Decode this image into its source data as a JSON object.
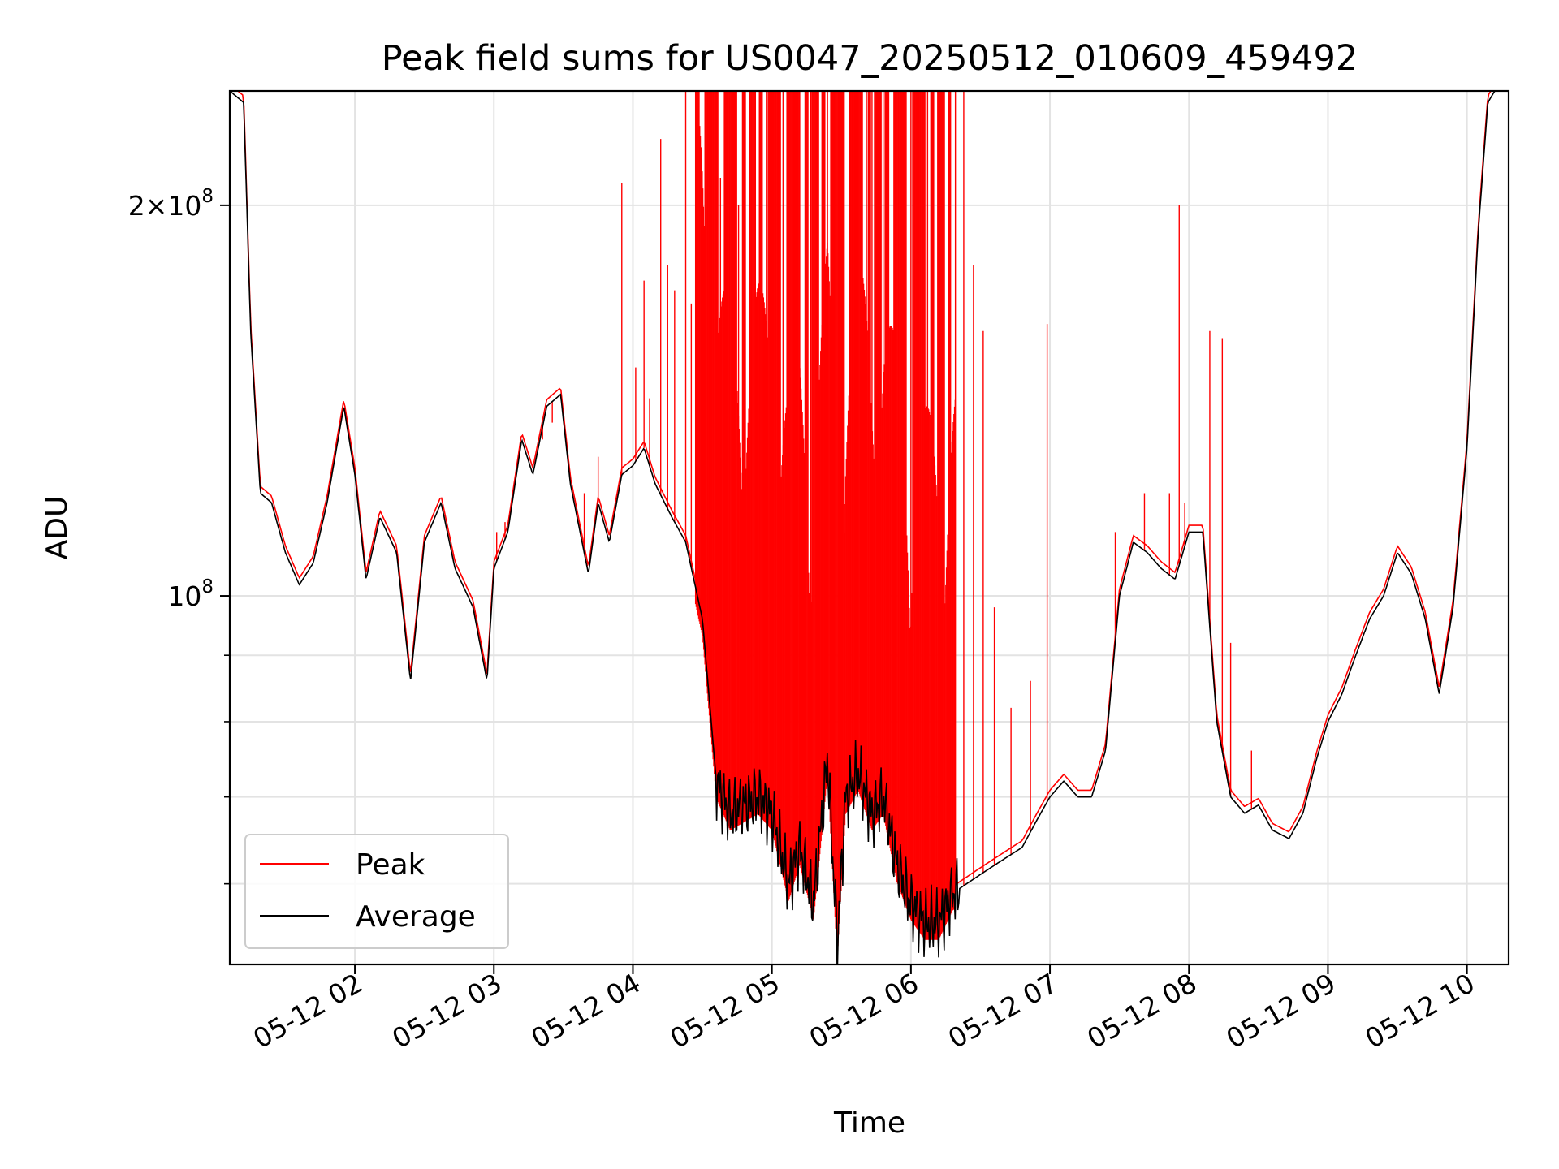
{
  "chart_data": {
    "type": "line",
    "title": "Peak field sums for US0047_20250512_010609_459492",
    "xlabel": "Time",
    "ylabel": "ADU",
    "yscale": "log",
    "grid": true,
    "legend_position": "lower-left",
    "xlim": [
      "05-12 01:06",
      "05-12 10:18"
    ],
    "ylim": [
      52000000,
      245000000
    ],
    "x_ticks": [
      "05-12 02",
      "05-12 03",
      "05-12 04",
      "05-12 05",
      "05-12 06",
      "05-12 07",
      "05-12 08",
      "05-12 09",
      "05-12 10"
    ],
    "x_tick_hours": [
      2,
      3,
      4,
      5,
      6,
      7,
      8,
      9,
      10
    ],
    "y_ticks": [
      {
        "value": 100000000,
        "mantissa": "",
        "exponent": "8",
        "base": "10"
      },
      {
        "value": 200000000,
        "mantissa": "2",
        "exponent": "8",
        "base": "10"
      }
    ],
    "y_minor_ticks": [
      60000000,
      70000000,
      80000000,
      90000000
    ],
    "series": [
      {
        "name": "Average",
        "color": "#000000",
        "x_hours": [
          1.1,
          1.2,
          1.25,
          1.32,
          1.4,
          1.5,
          1.6,
          1.7,
          1.8,
          1.92,
          2.0,
          2.08,
          2.18,
          2.3,
          2.4,
          2.5,
          2.62,
          2.72,
          2.85,
          2.95,
          3.0,
          3.1,
          3.2,
          3.28,
          3.38,
          3.48,
          3.55,
          3.68,
          3.75,
          3.83,
          3.92,
          4.0,
          4.08,
          4.16,
          4.28,
          4.38,
          4.5,
          4.6,
          4.7,
          4.8,
          4.9,
          5.0,
          5.12,
          5.2,
          5.3,
          5.4,
          5.47,
          5.53,
          5.62,
          5.72,
          5.8,
          5.9,
          6.0,
          6.1,
          6.2,
          6.3,
          6.4,
          6.5,
          6.6,
          6.7,
          6.8,
          6.9,
          7.0,
          7.1,
          7.2,
          7.3,
          7.4,
          7.5,
          7.6,
          7.7,
          7.8,
          7.9,
          8.0,
          8.1,
          8.2,
          8.3,
          8.4,
          8.5,
          8.6,
          8.72,
          8.82,
          8.92,
          9.0,
          9.1,
          9.2,
          9.3,
          9.4,
          9.5,
          9.6,
          9.7,
          9.8,
          9.9,
          10.0,
          10.08,
          10.15,
          10.2
        ],
        "values": [
          245000000,
          240000000,
          160000000,
          120000000,
          118000000,
          108000000,
          102000000,
          106000000,
          118000000,
          140000000,
          124000000,
          103000000,
          115000000,
          108000000,
          86000000,
          110000000,
          118000000,
          105000000,
          98000000,
          86000000,
          105000000,
          112000000,
          132000000,
          124000000,
          140000000,
          143000000,
          122000000,
          104000000,
          118000000,
          110000000,
          124000000,
          126000000,
          130000000,
          122000000,
          115000000,
          110000000,
          96000000,
          72000000,
          68000000,
          69000000,
          70000000,
          68000000,
          60000000,
          64000000,
          58000000,
          75000000,
          54000000,
          70000000,
          73000000,
          68000000,
          70000000,
          62000000,
          58000000,
          56000000,
          56000000,
          59000000,
          60000000,
          61000000,
          62000000,
          63000000,
          64000000,
          67000000,
          70000000,
          72000000,
          70000000,
          70000000,
          76000000,
          100000000,
          110000000,
          108000000,
          105000000,
          103000000,
          112000000,
          112000000,
          80000000,
          70000000,
          68000000,
          69000000,
          66000000,
          65000000,
          68000000,
          75000000,
          80000000,
          84000000,
          90000000,
          96000000,
          100000000,
          108000000,
          104000000,
          96000000,
          84000000,
          98000000,
          130000000,
          190000000,
          240000000,
          245000000
        ]
      },
      {
        "name": "Peak",
        "color": "#ff0000",
        "note_points": "baseline follows average slightly higher; spikes listed below",
        "spikes_x_hours": [
          3.02,
          3.08,
          3.35,
          3.42,
          3.65,
          3.75,
          3.92,
          4.02,
          4.08,
          4.12,
          4.2,
          4.25,
          4.3,
          4.38,
          4.42,
          4.47,
          4.52,
          4.56,
          4.6,
          4.63,
          4.68,
          4.72,
          4.76,
          4.8,
          4.84,
          4.88,
          4.92,
          4.96,
          5.0,
          5.04,
          5.08,
          5.12,
          5.16,
          5.2,
          5.24,
          5.28,
          5.32,
          5.36,
          5.4,
          5.44,
          5.48,
          5.52,
          5.56,
          5.6,
          5.64,
          5.68,
          5.72,
          5.76,
          5.8,
          5.84,
          5.88,
          5.92,
          5.96,
          6.0,
          6.04,
          6.08,
          6.12,
          6.16,
          6.2,
          6.24,
          6.28,
          6.32,
          6.38,
          6.45,
          6.52,
          6.6,
          6.72,
          6.86,
          6.98,
          7.47,
          7.68,
          7.86,
          7.93,
          7.97,
          8.15,
          8.24,
          8.3,
          8.45
        ],
        "spikes_values": [
          112000000,
          114000000,
          132000000,
          136000000,
          120000000,
          128000000,
          208000000,
          150000000,
          175000000,
          142000000,
          225000000,
          180000000,
          172000000,
          245000000,
          168000000,
          245000000,
          245000000,
          160000000,
          245000000,
          210000000,
          245000000,
          245000000,
          200000000,
          245000000,
          245000000,
          230000000,
          245000000,
          245000000,
          245000000,
          245000000,
          245000000,
          245000000,
          245000000,
          245000000,
          245000000,
          245000000,
          245000000,
          245000000,
          245000000,
          220000000,
          245000000,
          245000000,
          245000000,
          245000000,
          245000000,
          245000000,
          245000000,
          245000000,
          245000000,
          245000000,
          245000000,
          245000000,
          245000000,
          245000000,
          245000000,
          245000000,
          245000000,
          245000000,
          245000000,
          245000000,
          245000000,
          245000000,
          245000000,
          180000000,
          160000000,
          98000000,
          82000000,
          86000000,
          162000000,
          112000000,
          120000000,
          120000000,
          200000000,
          118000000,
          160000000,
          158000000,
          92000000,
          76000000
        ]
      }
    ]
  }
}
